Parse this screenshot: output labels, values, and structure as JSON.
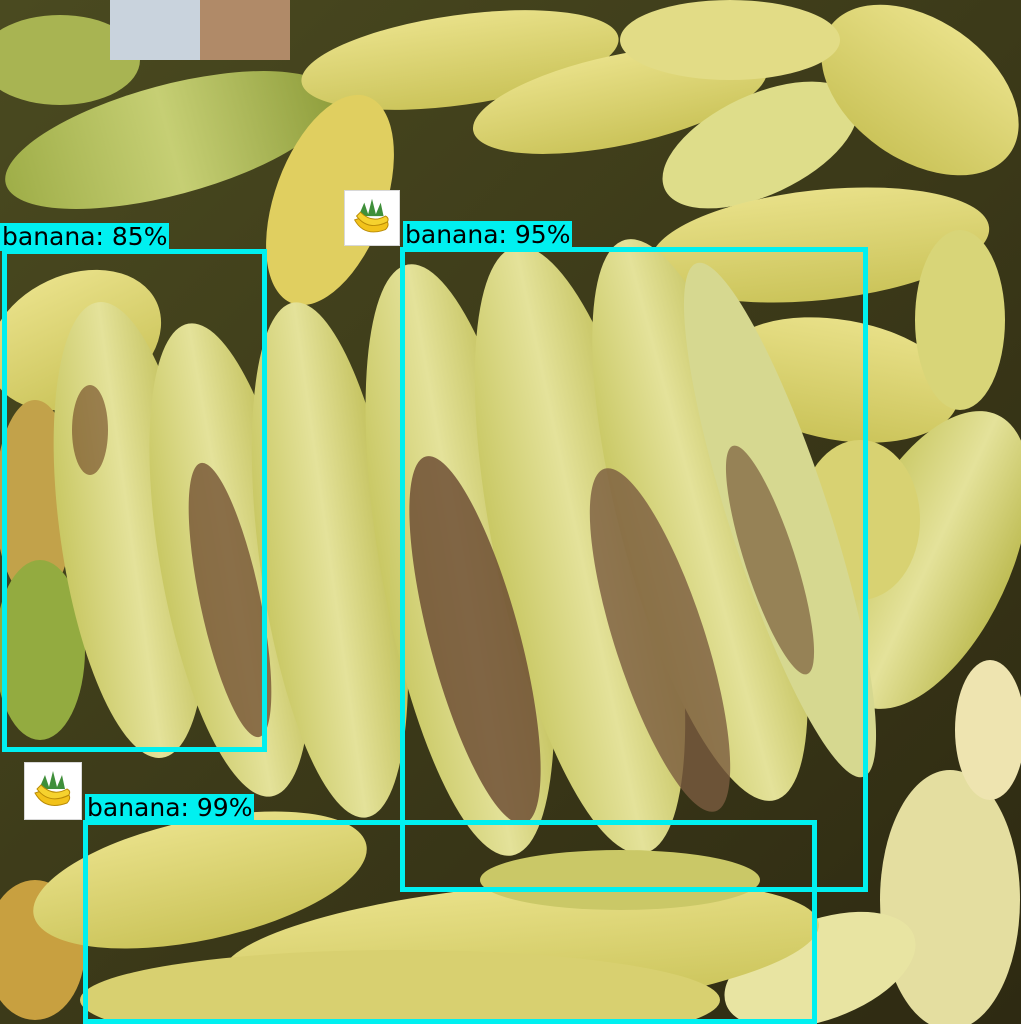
{
  "detections": [
    {
      "label": "banana: 85%"
    },
    {
      "label": "banana: 95%"
    },
    {
      "label": "banana: 99%"
    }
  ],
  "box_color": "#00f0f0",
  "badge_icon": "banana-bunch-icon"
}
